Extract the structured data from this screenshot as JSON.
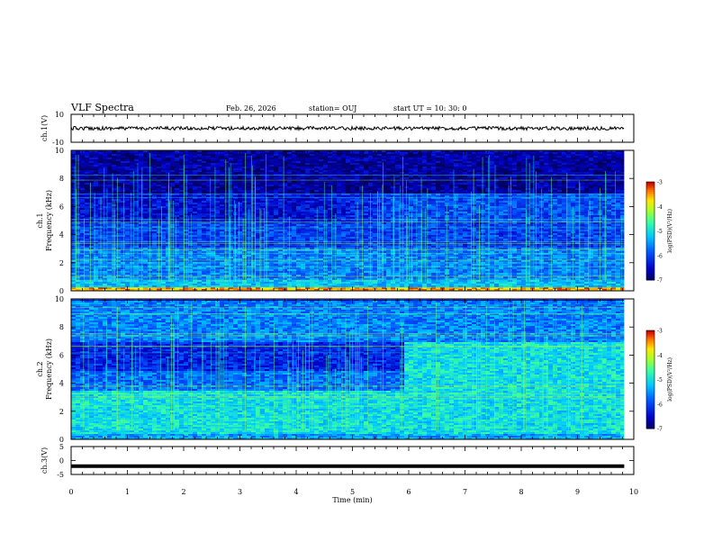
{
  "header": {
    "title": "VLF Spectra",
    "date": "Feb. 26, 2026",
    "station": "station= OUJ",
    "start": "start  UT =   10: 30: 0"
  },
  "colors": {
    "background": "#ffffff",
    "spectro_low": "#0a1a8c",
    "spectro_mid": "#2f8cff",
    "spectro_high": "#7fff5a",
    "trace": "#000000"
  },
  "chart_data": [
    {
      "id": "ch1_waveform",
      "type": "line",
      "ylabel": "ch.1(V)",
      "ylim": [
        -10,
        10
      ],
      "yticks": [
        "10",
        "-10"
      ],
      "x": [
        0,
        9.83
      ],
      "values": [
        0,
        0
      ],
      "note_amplitude": "noisy trace around 0 V, approx ±1 V"
    },
    {
      "id": "ch1_spectrogram",
      "type": "heatmap",
      "ylabel": "ch.1\nFrequency (kHz)",
      "ylabel_lines": [
        "ch.1",
        "Frequency  (kHz)"
      ],
      "ylim": [
        0,
        10
      ],
      "yticks": [
        "0",
        "2",
        "4",
        "6",
        "8",
        "10"
      ],
      "xlim": [
        0,
        10
      ],
      "data_end_min": 9.83,
      "colorbar": {
        "label": "log(PSD)(V²/Hz)",
        "range": [
          -7,
          -3
        ],
        "ticks": [
          "-3",
          "-4",
          "-5",
          "-6",
          "-7"
        ]
      },
      "background_log_psd": [
        {
          "fmin": 0.0,
          "fmax": 0.3,
          "level": -3.5
        },
        {
          "fmin": 0.3,
          "fmax": 0.8,
          "level": -5.2
        },
        {
          "fmin": 0.8,
          "fmax": 3.2,
          "level": -5.6
        },
        {
          "fmin": 3.2,
          "fmax": 5.0,
          "level": -6.0
        },
        {
          "fmin": 5.0,
          "fmax": 7.0,
          "level": -6.4
        },
        {
          "fmin": 7.0,
          "fmax": 10.0,
          "level": -6.7
        }
      ],
      "transition": {
        "t_start": 4.5,
        "t_end": 6.0,
        "fmin": 5.0,
        "fmax": 7.0,
        "level_after": -5.9
      }
    },
    {
      "id": "ch2_spectrogram",
      "type": "heatmap",
      "ylabel_lines": [
        "ch.2",
        "Frequency  (kHz)"
      ],
      "ylim": [
        0,
        10
      ],
      "yticks": [
        "0",
        "2",
        "4",
        "6",
        "8",
        "10"
      ],
      "xlim": [
        0,
        10
      ],
      "data_end_min": 9.83,
      "colorbar": {
        "label": "log(PSD)(V²/Hz)",
        "range": [
          -7,
          -3
        ],
        "ticks": [
          "-3",
          "-4",
          "-5",
          "-6",
          "-7"
        ]
      },
      "background_log_psd": [
        {
          "fmin": 0.0,
          "fmax": 0.5,
          "level": -5.4
        },
        {
          "fmin": 0.5,
          "fmax": 3.5,
          "level": -5.0
        },
        {
          "fmin": 3.5,
          "fmax": 5.0,
          "level": -5.7
        },
        {
          "fmin": 5.0,
          "fmax": 7.0,
          "level": -6.2
        },
        {
          "fmin": 7.0,
          "fmax": 10.0,
          "level": -5.6
        }
      ],
      "transition": {
        "t_start": 5.9,
        "t_end": 5.9,
        "fmin": 3.5,
        "fmax": 7.0,
        "level_after": -5.0
      }
    },
    {
      "id": "ch3_waveform",
      "type": "line",
      "ylabel": "ch.3(V)",
      "ylim": [
        -5,
        5
      ],
      "yticks": [
        "5",
        "0",
        "-5"
      ],
      "x": [
        0,
        9.83
      ],
      "values": [
        -2,
        -2
      ]
    }
  ],
  "xaxis": {
    "label": "Time  (min)",
    "ticks": [
      "0",
      "1",
      "2",
      "3",
      "4",
      "5",
      "6",
      "7",
      "8",
      "9",
      "10"
    ],
    "xlim": [
      0,
      10
    ]
  }
}
